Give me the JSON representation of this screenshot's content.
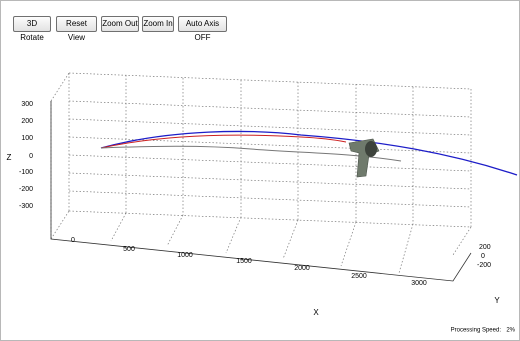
{
  "toolbar": {
    "buttons": [
      "3D Rotate",
      "Reset View",
      "Zoom Out",
      "Zoom In",
      "Auto Axis OFF"
    ]
  },
  "plot": {
    "z_label": "Z",
    "x_label": "X",
    "y_label": "Y",
    "z_ticks": [
      300,
      200,
      100,
      0,
      -100,
      -200,
      -300
    ],
    "x_ticks": [
      0,
      500,
      1000,
      1500,
      2000,
      2500,
      3000
    ],
    "y_ticks": [
      200,
      0,
      -200
    ]
  },
  "status": {
    "label": "Processing Speed:",
    "value": "2%"
  }
}
